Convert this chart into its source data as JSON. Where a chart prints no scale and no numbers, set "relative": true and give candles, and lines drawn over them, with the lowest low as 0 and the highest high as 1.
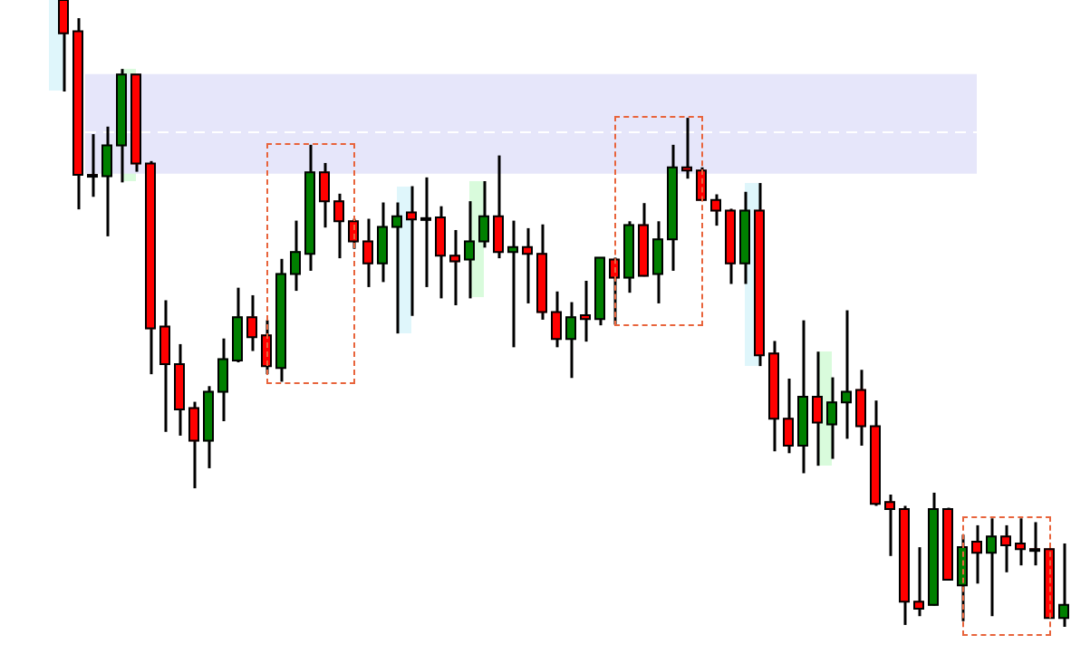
{
  "chart_data": {
    "type": "candlestick",
    "relative": true,
    "categories": [
      null,
      null,
      null,
      null,
      null,
      null,
      null,
      null,
      null,
      null,
      null,
      null,
      null,
      null,
      null,
      null,
      null,
      null,
      null,
      null,
      null,
      null,
      null,
      null,
      null,
      null,
      null,
      null,
      null,
      null,
      null,
      null,
      null,
      null,
      null,
      null,
      null,
      null,
      null,
      null,
      null,
      null,
      null,
      null,
      null,
      null,
      null,
      null,
      null,
      null,
      null,
      null,
      null,
      null,
      null,
      null,
      null,
      null,
      null,
      null,
      null,
      null,
      null,
      null,
      null,
      null,
      null,
      null,
      null,
      null
    ],
    "ohlc": [
      [
        1,
        1,
        0.854,
        0.947
      ],
      [
        0.95,
        0.971,
        0.666,
        0.721
      ],
      [
        0.721,
        0.786,
        0.686,
        0.72
      ],
      [
        0.719,
        0.798,
        0.623,
        0.768
      ],
      [
        0.768,
        0.89,
        0.709,
        0.881
      ],
      [
        0.881,
        0.881,
        0.726,
        0.739
      ],
      [
        0.739,
        0.743,
        0.403,
        0.476
      ],
      [
        0.479,
        0.521,
        0.311,
        0.419
      ],
      [
        0.419,
        0.451,
        0.305,
        0.347
      ],
      [
        0.349,
        0.359,
        0.221,
        0.297
      ],
      [
        0.297,
        0.384,
        0.253,
        0.375
      ],
      [
        0.375,
        0.46,
        0.328,
        0.427
      ],
      [
        0.425,
        0.541,
        0.422,
        0.494
      ],
      [
        0.494,
        0.529,
        0.44,
        0.462
      ],
      [
        0.465,
        0.489,
        0.403,
        0.416
      ],
      [
        0.413,
        0.587,
        0.391,
        0.563
      ],
      [
        0.563,
        0.648,
        0.536,
        0.598
      ],
      [
        0.595,
        0.769,
        0.568,
        0.725
      ],
      [
        0.725,
        0.74,
        0.637,
        0.679
      ],
      [
        0.679,
        0.691,
        0.588,
        0.647
      ],
      [
        0.647,
        0.651,
        0.603,
        0.615
      ],
      [
        0.615,
        0.651,
        0.542,
        0.58
      ],
      [
        0.58,
        0.677,
        0.55,
        0.638
      ],
      [
        0.638,
        0.677,
        0.468,
        0.655
      ],
      [
        0.661,
        0.703,
        0.496,
        0.65
      ],
      [
        0.652,
        0.717,
        0.542,
        0.651
      ],
      [
        0.653,
        0.671,
        0.524,
        0.592
      ],
      [
        0.592,
        0.633,
        0.513,
        0.583
      ],
      [
        0.586,
        0.679,
        0.524,
        0.615
      ],
      [
        0.615,
        0.711,
        0.605,
        0.655
      ],
      [
        0.655,
        0.752,
        0.588,
        0.598
      ],
      [
        0.598,
        0.648,
        0.446,
        0.606
      ],
      [
        0.606,
        0.636,
        0.516,
        0.595
      ],
      [
        0.595,
        0.642,
        0.49,
        0.502
      ],
      [
        0.502,
        0.535,
        0.446,
        0.459
      ],
      [
        0.459,
        0.518,
        0.397,
        0.494
      ],
      [
        0.497,
        0.552,
        0.455,
        0.491
      ],
      [
        0.491,
        0.589,
        0.481,
        0.589
      ],
      [
        0.586,
        0.589,
        0.482,
        0.557
      ],
      [
        0.557,
        0.647,
        0.533,
        0.641
      ],
      [
        0.641,
        0.676,
        0.559,
        0.56
      ],
      [
        0.563,
        0.647,
        0.516,
        0.618
      ],
      [
        0.618,
        0.769,
        0.568,
        0.733
      ],
      [
        0.733,
        0.812,
        0.715,
        0.728
      ],
      [
        0.728,
        0.733,
        0.68,
        0.681
      ],
      [
        0.681,
        0.69,
        0.64,
        0.664
      ],
      [
        0.664,
        0.667,
        0.547,
        0.58
      ],
      [
        0.58,
        0.694,
        0.547,
        0.664
      ],
      [
        0.664,
        0.708,
        0.416,
        0.433
      ],
      [
        0.436,
        0.456,
        0.28,
        0.332
      ],
      [
        0.332,
        0.396,
        0.277,
        0.289
      ],
      [
        0.289,
        0.489,
        0.245,
        0.367
      ],
      [
        0.367,
        0.439,
        0.257,
        0.326
      ],
      [
        0.323,
        0.398,
        0.268,
        0.358
      ],
      [
        0.358,
        0.505,
        0.3,
        0.375
      ],
      [
        0.378,
        0.41,
        0.289,
        0.32
      ],
      [
        0.32,
        0.361,
        0.193,
        0.196
      ],
      [
        0.199,
        0.211,
        0.113,
        0.188
      ],
      [
        0.188,
        0.193,
        0.003,
        0.04
      ],
      [
        0.04,
        0.127,
        0.017,
        0.029
      ],
      [
        0.035,
        0.214,
        0.034,
        0.188
      ],
      [
        0.188,
        0.19,
        0.074,
        0.075
      ],
      [
        0.066,
        0.147,
        0.009,
        0.127
      ],
      [
        0.136,
        0.162,
        0.069,
        0.118
      ],
      [
        0.118,
        0.173,
        0.017,
        0.144
      ],
      [
        0.144,
        0.162,
        0.087,
        0.13
      ],
      [
        0.133,
        0.173,
        0.098,
        0.124
      ],
      [
        0.124,
        0.167,
        0.098,
        0.123
      ],
      [
        0.124,
        0.125,
        0.013,
        0.014
      ],
      [
        0.014,
        0.133,
        0,
        0.035
      ]
    ],
    "colors": [
      "#ff0000",
      "#ff0000",
      "#ff0000",
      "#008000",
      "#008000",
      "#ff0000",
      "#ff0000",
      "#ff0000",
      "#ff0000",
      "#ff0000",
      "#008000",
      "#008000",
      "#008000",
      "#ff0000",
      "#ff0000",
      "#008000",
      "#008000",
      "#008000",
      "#ff0000",
      "#ff0000",
      "#ff0000",
      "#ff0000",
      "#008000",
      "#008000",
      "#ff0000",
      "#ff0000",
      "#ff0000",
      "#ff0000",
      "#008000",
      "#008000",
      "#ff0000",
      "#008000",
      "#ff0000",
      "#ff0000",
      "#ff0000",
      "#008000",
      "#ff0000",
      "#008000",
      "#ff0000",
      "#008000",
      "#ff0000",
      "#008000",
      "#008000",
      "#ff0000",
      "#ff0000",
      "#ff0000",
      "#ff0000",
      "#008000",
      "#ff0000",
      "#ff0000",
      "#ff0000",
      "#008000",
      "#ff0000",
      "#008000",
      "#008000",
      "#ff0000",
      "#ff0000",
      "#ff0000",
      "#ff0000",
      "#ff0000",
      "#008000",
      "#ff0000",
      "#008000",
      "#ff0000",
      "#008000",
      "#ff0000",
      "#ff0000",
      "#ff0000",
      "#ff0000",
      "#008000"
    ],
    "bands": [
      {
        "axis": "y",
        "from": 0.723,
        "to": 0.882,
        "color": "#e6e6fa"
      }
    ],
    "ref_lines": [
      {
        "axis": "y",
        "value": 0.789,
        "color": "#ffffff",
        "line_style": "dashed"
      }
    ],
    "legend": false
  }
}
